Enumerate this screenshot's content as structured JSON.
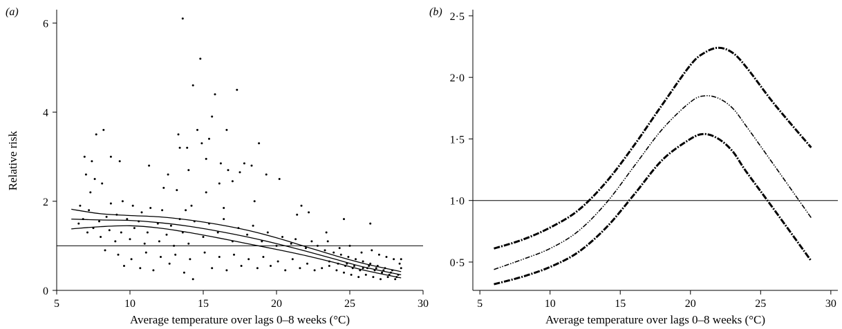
{
  "chart_data": [
    {
      "type": "scatter",
      "panel_label": "(a)",
      "xlabel": "Average temperature over lags 0–8 weeks (°C)",
      "ylabel": "Relative risk",
      "xlim": [
        5,
        30
      ],
      "ylim": [
        0,
        6.3
      ],
      "xticks": [
        5,
        10,
        15,
        20,
        25,
        30
      ],
      "xtick_labels": [
        "5",
        "10",
        "15",
        "20",
        "25",
        "30"
      ],
      "yticks": [
        0,
        2,
        4,
        6
      ],
      "ytick_labels": [
        "0",
        "2",
        "4",
        "6"
      ],
      "reference_line_y": 1.0,
      "grid": false,
      "legend": "none",
      "series": [
        {
          "kind": "points",
          "points": [
            [
              13.6,
              6.1
            ],
            [
              14.8,
              5.2
            ],
            [
              15.8,
              4.4
            ],
            [
              14.3,
              4.6
            ],
            [
              17.3,
              4.5
            ],
            [
              15.6,
              3.9
            ],
            [
              14.6,
              3.6
            ],
            [
              13.3,
              3.5
            ],
            [
              16.6,
              3.6
            ],
            [
              15.4,
              3.4
            ],
            [
              8.2,
              3.6
            ],
            [
              7.7,
              3.5
            ],
            [
              18.8,
              3.3
            ],
            [
              14.9,
              3.3
            ],
            [
              13.9,
              3.2
            ],
            [
              13.4,
              3.2
            ],
            [
              6.9,
              3.0
            ],
            [
              8.7,
              3.0
            ],
            [
              9.3,
              2.9
            ],
            [
              7.4,
              2.9
            ],
            [
              15.2,
              2.95
            ],
            [
              16.2,
              2.85
            ],
            [
              17.8,
              2.85
            ],
            [
              14.0,
              2.7
            ],
            [
              12.6,
              2.6
            ],
            [
              11.3,
              2.8
            ],
            [
              18.3,
              2.8
            ],
            [
              16.7,
              2.7
            ],
            [
              17.5,
              2.65
            ],
            [
              19.3,
              2.6
            ],
            [
              7.0,
              2.6
            ],
            [
              7.6,
              2.5
            ],
            [
              8.1,
              2.4
            ],
            [
              16.1,
              2.4
            ],
            [
              17.0,
              2.45
            ],
            [
              20.2,
              2.5
            ],
            [
              12.3,
              2.3
            ],
            [
              7.3,
              2.2
            ],
            [
              15.2,
              2.2
            ],
            [
              13.2,
              2.25
            ],
            [
              18.5,
              2.0
            ],
            [
              14.2,
              1.9
            ],
            [
              21.7,
              1.9
            ],
            [
              16.4,
              1.85
            ],
            [
              13.8,
              1.8
            ],
            [
              22.2,
              1.75
            ],
            [
              21.4,
              1.7
            ],
            [
              24.6,
              1.6
            ],
            [
              26.4,
              1.5
            ],
            [
              23.4,
              1.3
            ],
            [
              8.7,
              1.95
            ],
            [
              6.6,
              1.9
            ],
            [
              9.5,
              2.0
            ],
            [
              10.2,
              1.9
            ],
            [
              11.4,
              1.85
            ],
            [
              12.2,
              1.8
            ],
            [
              10.8,
              1.75
            ],
            [
              9.1,
              1.7
            ],
            [
              8.4,
              1.65
            ],
            [
              7.2,
              1.8
            ],
            [
              6.8,
              1.6
            ],
            [
              7.9,
              1.55
            ],
            [
              9.8,
              1.6
            ],
            [
              10.6,
              1.55
            ],
            [
              11.9,
              1.5
            ],
            [
              12.8,
              1.45
            ],
            [
              7.5,
              1.4
            ],
            [
              8.6,
              1.35
            ],
            [
              9.4,
              1.3
            ],
            [
              10.3,
              1.4
            ],
            [
              11.2,
              1.3
            ],
            [
              12.5,
              1.25
            ],
            [
              13.6,
              1.3
            ],
            [
              7.1,
              1.3
            ],
            [
              6.5,
              1.5
            ],
            [
              8.0,
              1.2
            ],
            [
              9.0,
              1.1
            ],
            [
              10.0,
              1.15
            ],
            [
              11.0,
              1.05
            ],
            [
              12.0,
              1.1
            ],
            [
              13.0,
              1.0
            ],
            [
              14.0,
              1.05
            ],
            [
              15.0,
              1.2
            ],
            [
              16.0,
              1.3
            ],
            [
              17.0,
              1.1
            ],
            [
              18.0,
              1.25
            ],
            [
              19.0,
              1.1
            ],
            [
              20.0,
              1.0
            ],
            [
              21.0,
              1.05
            ],
            [
              22.0,
              0.95
            ],
            [
              8.3,
              0.9
            ],
            [
              9.2,
              0.8
            ],
            [
              10.1,
              0.7
            ],
            [
              11.1,
              0.85
            ],
            [
              12.1,
              0.75
            ],
            [
              13.1,
              0.8
            ],
            [
              14.1,
              0.7
            ],
            [
              15.1,
              0.85
            ],
            [
              16.1,
              0.75
            ],
            [
              17.1,
              0.8
            ],
            [
              18.1,
              0.7
            ],
            [
              19.1,
              0.75
            ],
            [
              20.1,
              0.65
            ],
            [
              21.1,
              0.7
            ],
            [
              22.1,
              0.6
            ],
            [
              9.6,
              0.55
            ],
            [
              10.7,
              0.5
            ],
            [
              11.6,
              0.45
            ],
            [
              12.7,
              0.6
            ],
            [
              13.7,
              0.4
            ],
            [
              14.3,
              0.25
            ],
            [
              15.6,
              0.5
            ],
            [
              16.6,
              0.45
            ],
            [
              17.6,
              0.55
            ],
            [
              18.7,
              0.5
            ],
            [
              19.6,
              0.55
            ],
            [
              20.6,
              0.45
            ],
            [
              21.6,
              0.5
            ],
            [
              22.6,
              0.45
            ],
            [
              23.1,
              0.5
            ],
            [
              23.6,
              0.55
            ],
            [
              24.1,
              0.45
            ],
            [
              24.6,
              0.4
            ],
            [
              25.1,
              0.35
            ],
            [
              25.6,
              0.3
            ],
            [
              26.1,
              0.35
            ],
            [
              26.6,
              0.3
            ],
            [
              27.1,
              0.25
            ],
            [
              27.6,
              0.3
            ],
            [
              28.1,
              0.25
            ],
            [
              23.3,
              0.9
            ],
            [
              23.9,
              0.85
            ],
            [
              24.4,
              0.8
            ],
            [
              24.9,
              0.75
            ],
            [
              25.4,
              0.7
            ],
            [
              25.9,
              0.65
            ],
            [
              26.4,
              0.6
            ],
            [
              26.9,
              0.55
            ],
            [
              27.4,
              0.5
            ],
            [
              27.9,
              0.45
            ],
            [
              23.6,
              0.65
            ],
            [
              24.2,
              0.6
            ],
            [
              24.7,
              0.55
            ],
            [
              25.2,
              0.5
            ],
            [
              25.7,
              0.45
            ],
            [
              26.2,
              0.5
            ],
            [
              26.7,
              0.45
            ],
            [
              27.2,
              0.4
            ],
            [
              27.7,
              0.35
            ],
            [
              28.2,
              0.3
            ],
            [
              22.8,
              1.0
            ],
            [
              23.5,
              1.1
            ],
            [
              24.3,
              0.95
            ],
            [
              25.0,
              1.0
            ],
            [
              25.8,
              0.85
            ],
            [
              26.5,
              0.9
            ],
            [
              27.0,
              0.8
            ],
            [
              27.5,
              0.75
            ],
            [
              28.0,
              0.7
            ],
            [
              28.4,
              0.6
            ],
            [
              19.4,
              1.3
            ],
            [
              20.4,
              1.2
            ],
            [
              21.3,
              1.15
            ],
            [
              22.4,
              1.1
            ],
            [
              18.4,
              1.45
            ],
            [
              17.4,
              1.4
            ],
            [
              16.4,
              1.6
            ],
            [
              15.4,
              1.5
            ],
            [
              14.4,
              1.55
            ],
            [
              13.4,
              1.6
            ],
            [
              24.8,
              0.6
            ],
            [
              25.3,
              0.55
            ],
            [
              25.9,
              0.5
            ],
            [
              26.3,
              0.55
            ],
            [
              26.8,
              0.5
            ],
            [
              27.3,
              0.45
            ],
            [
              27.8,
              0.4
            ],
            [
              28.3,
              0.35
            ],
            [
              28.5,
              0.5
            ],
            [
              28.5,
              0.7
            ]
          ]
        },
        {
          "kind": "line",
          "name": "upper",
          "x": [
            6,
            8,
            10,
            12,
            14,
            16,
            18,
            20,
            22,
            24,
            26,
            28.5
          ],
          "y": [
            1.82,
            1.72,
            1.68,
            1.65,
            1.58,
            1.48,
            1.35,
            1.18,
            0.98,
            0.78,
            0.6,
            0.42
          ]
        },
        {
          "kind": "line",
          "name": "estimate",
          "x": [
            6,
            8,
            10,
            12,
            14,
            16,
            18,
            20,
            22,
            24,
            26,
            28.5
          ],
          "y": [
            1.6,
            1.58,
            1.57,
            1.52,
            1.44,
            1.33,
            1.2,
            1.05,
            0.88,
            0.7,
            0.52,
            0.35
          ]
        },
        {
          "kind": "line",
          "name": "lower",
          "x": [
            6,
            8,
            10,
            12,
            14,
            16,
            18,
            20,
            22,
            24,
            26,
            28.5
          ],
          "y": [
            1.38,
            1.43,
            1.45,
            1.4,
            1.3,
            1.18,
            1.05,
            0.92,
            0.78,
            0.62,
            0.45,
            0.28
          ]
        }
      ]
    },
    {
      "type": "line",
      "panel_label": "(b)",
      "xlabel": "Average temperature over lags 0–8 weeks (°C)",
      "ylabel": "",
      "xlim": [
        4.5,
        30.5
      ],
      "ylim": [
        0.27,
        2.55
      ],
      "xticks": [
        5,
        10,
        15,
        20,
        25,
        30
      ],
      "xtick_labels": [
        "5",
        "10",
        "15",
        "20",
        "25",
        "30"
      ],
      "yticks": [
        0.5,
        1.0,
        1.5,
        2.0,
        2.5
      ],
      "ytick_labels": [
        "0·5",
        "1·0",
        "1·5",
        "2·0",
        "2·5"
      ],
      "reference_line_y": 1.0,
      "grid": false,
      "legend": "none",
      "series": [
        {
          "kind": "line",
          "name": "upper",
          "x": [
            6,
            8,
            10,
            12,
            14,
            16,
            18,
            20,
            21,
            22,
            23,
            24,
            26,
            28.6
          ],
          "y": [
            0.61,
            0.68,
            0.78,
            0.92,
            1.15,
            1.45,
            1.78,
            2.1,
            2.2,
            2.24,
            2.2,
            2.08,
            1.78,
            1.43
          ]
        },
        {
          "kind": "line",
          "name": "estimate",
          "x": [
            6,
            8,
            10,
            12,
            14,
            16,
            18,
            20,
            21,
            22,
            23,
            24,
            26,
            28.6
          ],
          "y": [
            0.44,
            0.52,
            0.61,
            0.75,
            0.98,
            1.28,
            1.58,
            1.8,
            1.85,
            1.83,
            1.75,
            1.6,
            1.28,
            0.86
          ]
        },
        {
          "kind": "line",
          "name": "lower",
          "x": [
            6,
            8,
            10,
            12,
            14,
            16,
            18,
            20,
            21,
            22,
            23,
            24,
            26,
            28.6
          ],
          "y": [
            0.32,
            0.38,
            0.46,
            0.58,
            0.78,
            1.05,
            1.33,
            1.5,
            1.54,
            1.5,
            1.4,
            1.23,
            0.92,
            0.51
          ]
        }
      ]
    }
  ]
}
